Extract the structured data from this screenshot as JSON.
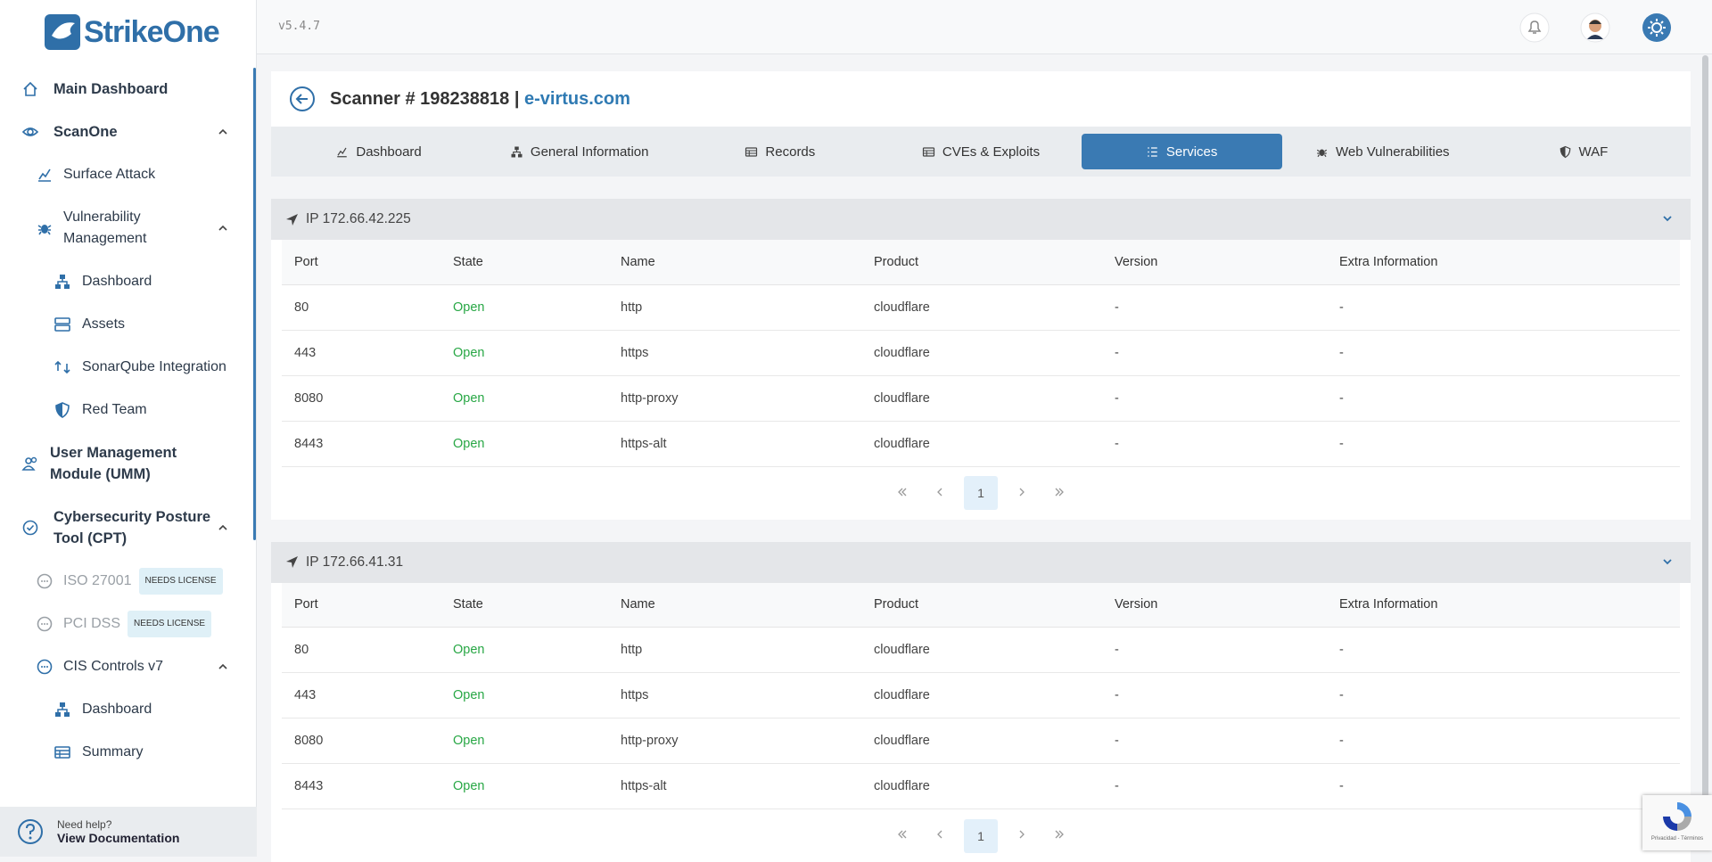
{
  "sidebar": {
    "logo": "StrikeOne",
    "items": [
      {
        "label": "Main Dashboard",
        "level": 0,
        "icon": "home"
      },
      {
        "label": "ScanOne",
        "level": 0,
        "icon": "eye",
        "expanded": true
      },
      {
        "label": "Surface Attack",
        "level": 1,
        "icon": "chart"
      },
      {
        "label": "Vulnerability Management",
        "level": 1,
        "icon": "bug",
        "expanded": true
      },
      {
        "label": "Dashboard",
        "level": 2,
        "icon": "tree"
      },
      {
        "label": "Assets",
        "level": 2,
        "icon": "server"
      },
      {
        "label": "SonarQube Integration",
        "level": 2,
        "icon": "sync"
      },
      {
        "label": "Red Team",
        "level": 2,
        "icon": "shield"
      },
      {
        "label": "User Management Module (UMM)",
        "level": 0,
        "icon": "users"
      },
      {
        "label": "Cybersecurity Posture Tool (CPT)",
        "level": 0,
        "icon": "check",
        "expanded": true
      },
      {
        "label": "ISO 27001",
        "level": 1,
        "icon": "dots",
        "disabled": true,
        "badge": "NEEDS LICENSE"
      },
      {
        "label": "PCI DSS",
        "level": 1,
        "icon": "dots",
        "disabled": true,
        "badge": "NEEDS LICENSE"
      },
      {
        "label": "CIS Controls v7",
        "level": 1,
        "icon": "dots",
        "expanded": true
      },
      {
        "label": "Dashboard",
        "level": 2,
        "icon": "tree"
      },
      {
        "label": "Summary",
        "level": 2,
        "icon": "table"
      }
    ],
    "help": {
      "title": "Need help?",
      "link": "View Documentation"
    }
  },
  "topbar": {
    "version": "v5.4.7"
  },
  "page": {
    "title": "Scanner # 198238818 |",
    "domain": "e-virtus.com",
    "tabs": [
      {
        "label": "Dashboard"
      },
      {
        "label": "General Information"
      },
      {
        "label": "Records"
      },
      {
        "label": "CVEs & Exploits"
      },
      {
        "label": "Services",
        "active": true
      },
      {
        "label": "Web Vulnerabilities"
      },
      {
        "label": "WAF"
      }
    ]
  },
  "sections": [
    {
      "title": "IP 172.66.42.225",
      "columns": [
        "Port",
        "State",
        "Name",
        "Product",
        "Version",
        "Extra Information"
      ],
      "rows": [
        [
          "80",
          "Open",
          "http",
          "cloudflare",
          "-",
          "-"
        ],
        [
          "443",
          "Open",
          "https",
          "cloudflare",
          "-",
          "-"
        ],
        [
          "8080",
          "Open",
          "http-proxy",
          "cloudflare",
          "-",
          "-"
        ],
        [
          "8443",
          "Open",
          "https-alt",
          "cloudflare",
          "-",
          "-"
        ]
      ],
      "page": "1"
    },
    {
      "title": "IP 172.66.41.31",
      "columns": [
        "Port",
        "State",
        "Name",
        "Product",
        "Version",
        "Extra Information"
      ],
      "rows": [
        [
          "80",
          "Open",
          "http",
          "cloudflare",
          "-",
          "-"
        ],
        [
          "443",
          "Open",
          "https",
          "cloudflare",
          "-",
          "-"
        ],
        [
          "8080",
          "Open",
          "http-proxy",
          "cloudflare",
          "-",
          "-"
        ],
        [
          "8443",
          "Open",
          "https-alt",
          "cloudflare",
          "-",
          "-"
        ]
      ],
      "page": "1"
    }
  ],
  "recaptcha": "Privacidad - Términos"
}
